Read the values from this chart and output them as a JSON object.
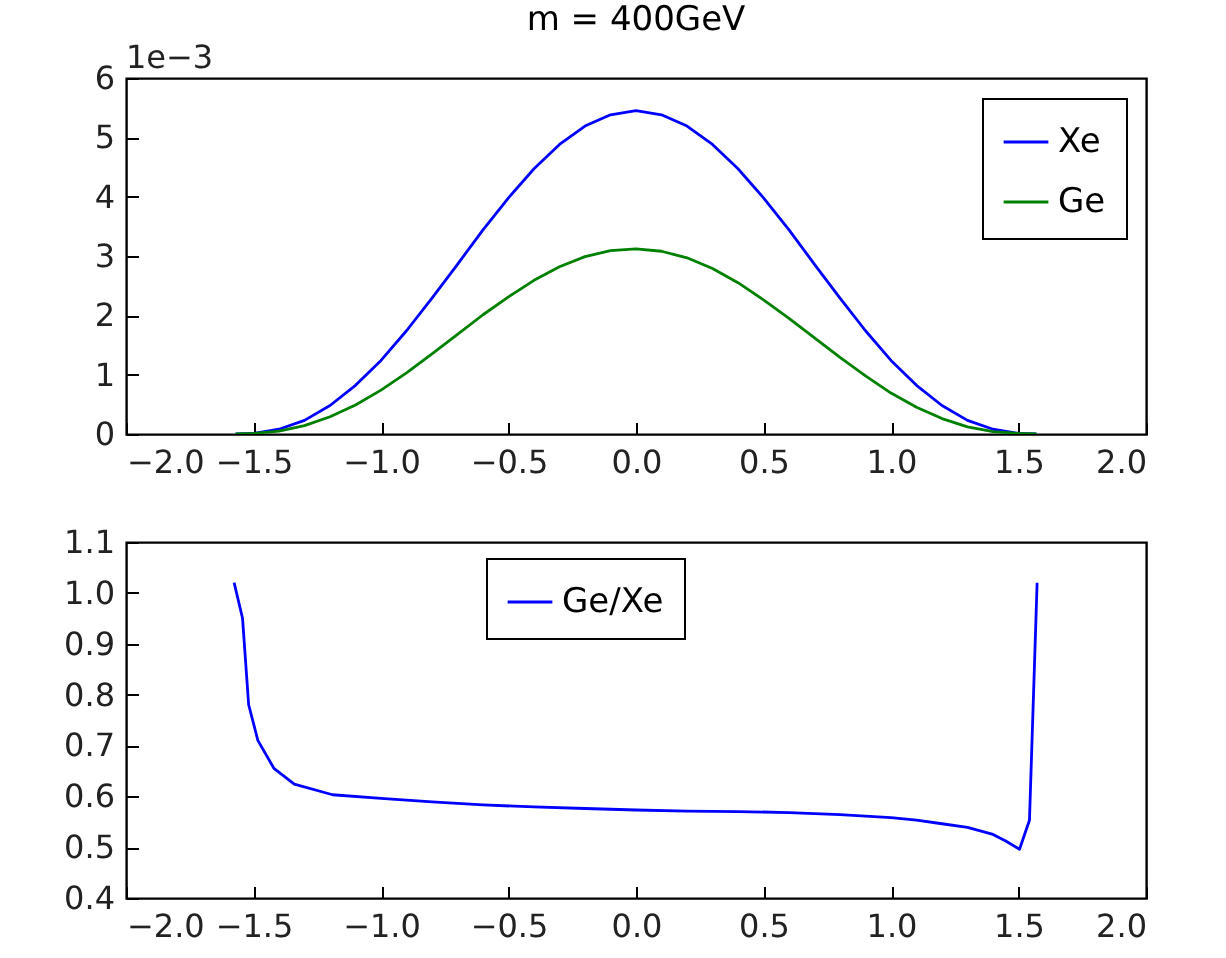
{
  "chart_data": [
    {
      "type": "line",
      "title": "m = 400GeV",
      "annotations": [
        "1e−3"
      ],
      "x": [
        -1.57,
        -1.5,
        -1.4,
        -1.3,
        -1.2,
        -1.1,
        -1.0,
        -0.9,
        -0.8,
        -0.7,
        -0.6,
        -0.5,
        -0.4,
        -0.3,
        -0.2,
        -0.1,
        0,
        0.1,
        0.2,
        0.3,
        0.4,
        0.5,
        0.6,
        0.7,
        0.8,
        0.9,
        1.0,
        1.1,
        1.2,
        1.3,
        1.4,
        1.5,
        1.57
      ],
      "series": [
        {
          "name": "Xe",
          "color": "#0000ff",
          "values": [
            0,
            0.01,
            0.08,
            0.23,
            0.48,
            0.82,
            1.24,
            1.74,
            2.29,
            2.86,
            3.44,
            3.98,
            4.47,
            4.88,
            5.19,
            5.38,
            5.45,
            5.38,
            5.19,
            4.88,
            4.47,
            3.98,
            3.44,
            2.86,
            2.29,
            1.74,
            1.24,
            0.82,
            0.48,
            0.23,
            0.08,
            0.01,
            0
          ]
        },
        {
          "name": "Ge",
          "color": "#008000",
          "values": [
            0,
            0.01,
            0.05,
            0.14,
            0.29,
            0.49,
            0.74,
            1.03,
            1.35,
            1.68,
            2.01,
            2.31,
            2.59,
            2.82,
            2.99,
            3.09,
            3.12,
            3.08,
            2.97,
            2.79,
            2.55,
            2.26,
            1.95,
            1.62,
            1.29,
            0.98,
            0.69,
            0.45,
            0.26,
            0.12,
            0.04,
            0.01,
            0
          ]
        }
      ],
      "xlim": [
        -2.0,
        2.0
      ],
      "xticks": [
        {
          "value": -2,
          "label": "−2.0"
        },
        {
          "value": -1.5,
          "label": "−1.5"
        },
        {
          "value": -1,
          "label": "−1.0"
        },
        {
          "value": -0.5,
          "label": "−0.5"
        },
        {
          "value": 0,
          "label": "0.0"
        },
        {
          "value": 0.5,
          "label": "0.5"
        },
        {
          "value": 1,
          "label": "1.0"
        },
        {
          "value": 1.5,
          "label": "1.5"
        },
        {
          "value": 2,
          "label": "2.0"
        }
      ],
      "ylim": [
        0,
        6
      ],
      "yticks": [
        0,
        1,
        2,
        3,
        4,
        5,
        6
      ],
      "legend": "top right",
      "grid": false
    },
    {
      "type": "line",
      "series": [
        {
          "name": "Ge/Xe",
          "color": "#0000ff",
          "x": [
            -1.576,
            -1.543,
            -1.519,
            -1.483,
            -1.42,
            -1.34,
            -1.19,
            -1.0,
            -0.8,
            -0.6,
            -0.4,
            -0.2,
            0,
            0.2,
            0.4,
            0.6,
            0.8,
            1.0,
            1.1,
            1.2,
            1.3,
            1.4,
            1.45,
            1.504,
            1.543,
            1.573
          ],
          "values": [
            1.02,
            0.95,
            0.78,
            0.71,
            0.655,
            0.624,
            0.603,
            0.596,
            0.589,
            0.583,
            0.579,
            0.576,
            0.573,
            0.571,
            0.57,
            0.568,
            0.564,
            0.558,
            0.553,
            0.546,
            0.539,
            0.525,
            0.512,
            0.496,
            0.553,
            1.02
          ]
        }
      ],
      "xlim": [
        -2.0,
        2.0
      ],
      "xticks": [
        {
          "value": -2,
          "label": "−2.0"
        },
        {
          "value": -1.5,
          "label": "−1.5"
        },
        {
          "value": -1,
          "label": "−1.0"
        },
        {
          "value": -0.5,
          "label": "−0.5"
        },
        {
          "value": 0,
          "label": "0.0"
        },
        {
          "value": 0.5,
          "label": "0.5"
        },
        {
          "value": 1,
          "label": "1.0"
        },
        {
          "value": 1.5,
          "label": "1.5"
        },
        {
          "value": 2,
          "label": "2.0"
        }
      ],
      "ylim": [
        0.4,
        1.1
      ],
      "yticks": [
        {
          "value": 0.4,
          "label": "0.4"
        },
        {
          "value": 0.5,
          "label": "0.5"
        },
        {
          "value": 0.6,
          "label": "0.6"
        },
        {
          "value": 0.7,
          "label": "0.7"
        },
        {
          "value": 0.8,
          "label": "0.8"
        },
        {
          "value": 0.9,
          "label": "0.9"
        },
        {
          "value": 1.0,
          "label": "1.0"
        },
        {
          "value": 1.1,
          "label": "1.1"
        }
      ],
      "legend": "top",
      "grid": false
    }
  ]
}
